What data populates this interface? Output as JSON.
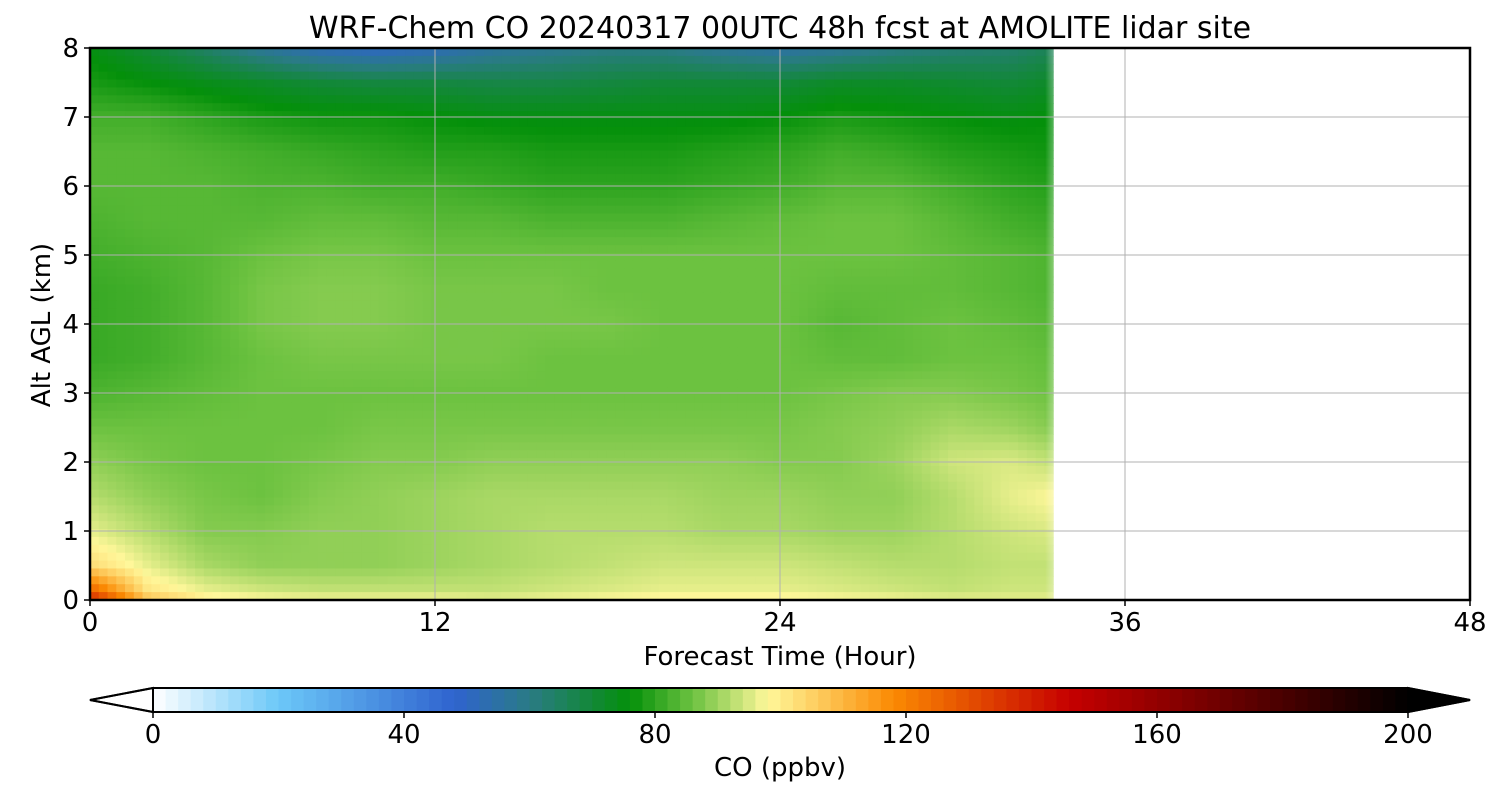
{
  "chart_data": {
    "type": "heatmap",
    "title": "WRF-Chem CO  20240317 00UTC 48h fcst at AMOLITE lidar site",
    "xlabel": "Forecast Time (Hour)",
    "ylabel": "Alt AGL (km)",
    "xlim": [
      0,
      48
    ],
    "ylim": [
      0,
      8
    ],
    "xticks": [
      0,
      12,
      24,
      36,
      48
    ],
    "yticks": [
      0,
      1,
      2,
      3,
      4,
      5,
      6,
      7,
      8
    ],
    "grid": true,
    "data_end_hour": 33.5,
    "colorbar": {
      "label": "CO  (ppbv)",
      "range": [
        0,
        200
      ],
      "ticks": [
        0,
        40,
        80,
        120,
        160,
        200
      ],
      "extend": "both",
      "orientation": "horizontal",
      "stops": [
        {
          "value": 0,
          "color": "#ffffff"
        },
        {
          "value": 20,
          "color": "#6cc8f8"
        },
        {
          "value": 48,
          "color": "#2f63cf"
        },
        {
          "value": 60,
          "color": "#2a7b85"
        },
        {
          "value": 76,
          "color": "#04900a"
        },
        {
          "value": 86,
          "color": "#6cc240"
        },
        {
          "value": 98,
          "color": "#fff79a"
        },
        {
          "value": 118,
          "color": "#fb8a02"
        },
        {
          "value": 146,
          "color": "#c60000"
        },
        {
          "value": 200,
          "color": "#000000"
        }
      ]
    },
    "time_hours": [
      0,
      2,
      4,
      6,
      8,
      10,
      12,
      14,
      16,
      18,
      20,
      22,
      24,
      26,
      28,
      30,
      32,
      33.5
    ],
    "altitude_km": [
      0,
      0.15,
      0.5,
      1,
      1.5,
      2,
      2.5,
      3,
      3.5,
      4,
      4.5,
      5,
      5.5,
      6,
      6.5,
      7,
      7.5,
      8
    ],
    "co_ppbv": [
      [
        140,
        108,
        100,
        98,
        97,
        97,
        97,
        96,
        97,
        98,
        99,
        99,
        99,
        98,
        97,
        96,
        96,
        96
      ],
      [
        125,
        101,
        96,
        94,
        93,
        93,
        93,
        93,
        94,
        95,
        96,
        96,
        96,
        95,
        94,
        93,
        94,
        94
      ],
      [
        103,
        96,
        91,
        89,
        89,
        89,
        90,
        91,
        92,
        93,
        94,
        94,
        94,
        93,
        92,
        92,
        93,
        93
      ],
      [
        96,
        92,
        88,
        88,
        89,
        89,
        90,
        91,
        92,
        92,
        92,
        91,
        91,
        90,
        90,
        92,
        94,
        95
      ],
      [
        92,
        89,
        87,
        86,
        88,
        89,
        90,
        91,
        91,
        91,
        91,
        90,
        90,
        89,
        89,
        92,
        96,
        98
      ],
      [
        89,
        87,
        86,
        86,
        87,
        88,
        88,
        89,
        89,
        89,
        89,
        89,
        88,
        88,
        90,
        94,
        95,
        93
      ],
      [
        86,
        86,
        86,
        86,
        86,
        87,
        87,
        87,
        87,
        87,
        87,
        87,
        87,
        88,
        89,
        91,
        90,
        88
      ],
      [
        83,
        84,
        85,
        86,
        86,
        86,
        86,
        86,
        86,
        86,
        86,
        86,
        86,
        87,
        88,
        88,
        87,
        86
      ],
      [
        81,
        82,
        84,
        86,
        87,
        87,
        87,
        87,
        86,
        86,
        86,
        86,
        86,
        85,
        85,
        86,
        86,
        85
      ],
      [
        81,
        82,
        84,
        87,
        88,
        88,
        87,
        87,
        87,
        87,
        86,
        86,
        86,
        84,
        85,
        86,
        85,
        84
      ],
      [
        81,
        82,
        84,
        87,
        88,
        88,
        87,
        87,
        87,
        86,
        86,
        86,
        86,
        85,
        85,
        85,
        84,
        83
      ],
      [
        82,
        83,
        84,
        86,
        87,
        87,
        86,
        86,
        86,
        86,
        86,
        86,
        86,
        86,
        86,
        85,
        84,
        83
      ],
      [
        83,
        84,
        84,
        84,
        85,
        85,
        84,
        84,
        83,
        83,
        83,
        84,
        85,
        86,
        86,
        84,
        82,
        81
      ],
      [
        84,
        84,
        84,
        83,
        83,
        82,
        82,
        81,
        80,
        80,
        80,
        81,
        82,
        84,
        84,
        82,
        80,
        79
      ],
      [
        84,
        84,
        83,
        82,
        81,
        80,
        79,
        79,
        78,
        78,
        78,
        79,
        80,
        82,
        81,
        79,
        78,
        77
      ],
      [
        82,
        82,
        80,
        78,
        77,
        77,
        76,
        75,
        75,
        75,
        75,
        75,
        76,
        78,
        77,
        76,
        75,
        76
      ],
      [
        78,
        76,
        74,
        72,
        70,
        69,
        69,
        68,
        68,
        69,
        70,
        70,
        70,
        72,
        72,
        71,
        70,
        72
      ],
      [
        75,
        70,
        64,
        57,
        52,
        50,
        52,
        56,
        58,
        60,
        60,
        57,
        55,
        57,
        60,
        62,
        63,
        66
      ]
    ]
  }
}
